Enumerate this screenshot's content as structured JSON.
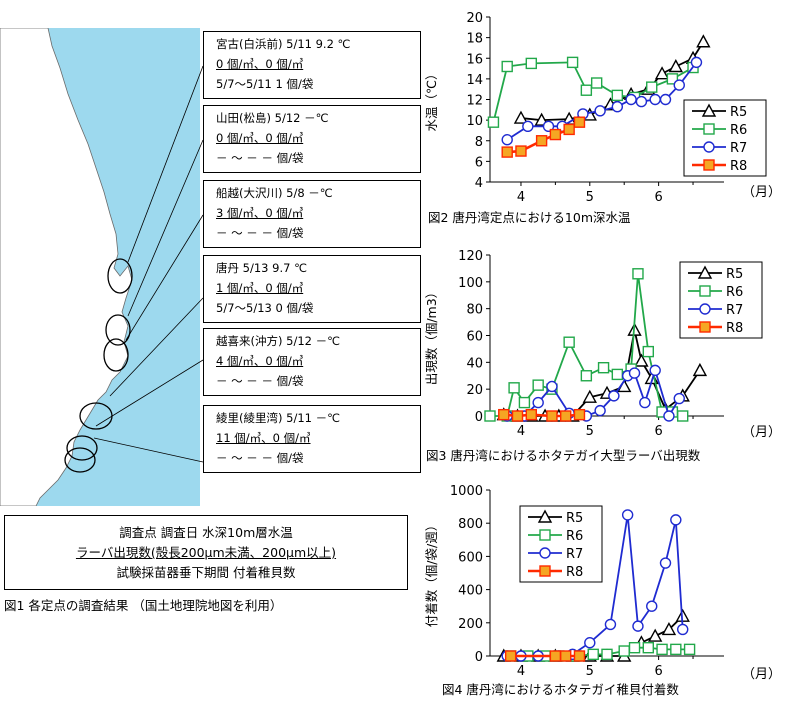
{
  "stations": [
    {
      "line1": "宮古(白浜前) 5/11  9.2 ℃",
      "line2": "  0 個/㎥、0 個/㎥",
      "line3": "5/7～5/11   1 個/袋"
    },
    {
      "line1": "山田(松島) 5/12  －℃",
      "line2": "  0 個/㎥、0 個/㎥",
      "line3": "－ ～ －      － 個/袋"
    },
    {
      "line1": "船越(大沢川) 5/8  －℃",
      "line2": "  3 個/㎥、0 個/㎥",
      "line3": "－ ～ －      － 個/袋"
    },
    {
      "line1": "唐丹 5/13  9.7 ℃",
      "line2": "  1 個/㎥、0 個/㎥",
      "line3": "5/7～5/13   0 個/袋"
    },
    {
      "line1": "越喜来(沖方) 5/12  －℃",
      "line2": "  4 個/㎥、0 個/㎥",
      "line3": "－ ～ －      － 個/袋"
    },
    {
      "line1": "綾里(綾里湾) 5/11  －℃",
      "line2": "  11 個/㎥、0 個/㎥",
      "line3": "－ ～ －      － 個/袋"
    }
  ],
  "legend_box": {
    "line1": "調査点  調査日  水深10m層水温",
    "line2": "ラーバ出現数(殻長200μm未満、200μm以上)",
    "line3": "試験採苗器垂下期間  付着稚貝数"
  },
  "fig1_caption": "図1  各定点の調査結果 （国土地理院地図を利用）",
  "colors": {
    "sea": "#9dd9ee",
    "land": "#ffffff",
    "R5": "#000000",
    "R6": "#22a84a",
    "R7": "#1f2bd1",
    "R8": "#ff2a00",
    "R8_fill": "#f5a623"
  },
  "chart_data": [
    {
      "type": "line",
      "title": "図2  唐丹湾定点における10m深水温",
      "xlabel": "（月）",
      "ylabel": "水温（℃）",
      "xlim": [
        3.55,
        6.95
      ],
      "ylim": [
        4,
        20
      ],
      "xticks": [
        4,
        5,
        6
      ],
      "yticks": [
        4,
        6,
        8,
        10,
        12,
        14,
        16,
        18,
        20
      ],
      "legend": "right",
      "series": [
        {
          "name": "R5",
          "x": [
            4.0,
            4.3,
            4.7,
            5.0,
            5.3,
            5.6,
            5.85,
            6.05,
            6.25,
            6.5,
            6.65
          ],
          "y": [
            10.2,
            10.0,
            10.1,
            10.5,
            11.5,
            12.5,
            13.0,
            14.5,
            15.2,
            16.0,
            17.6
          ]
        },
        {
          "name": "R6",
          "x": [
            3.6,
            3.8,
            4.15,
            4.75,
            4.95,
            5.1,
            5.4,
            5.65,
            5.9,
            6.2,
            6.5
          ],
          "y": [
            9.8,
            15.2,
            15.5,
            15.6,
            12.9,
            13.6,
            12.4,
            12.2,
            13.2,
            14.0,
            15.1
          ]
        },
        {
          "name": "R7",
          "x": [
            3.8,
            4.1,
            4.4,
            4.6,
            4.9,
            5.15,
            5.4,
            5.6,
            5.75,
            5.95,
            6.1,
            6.3,
            6.55
          ],
          "y": [
            8.1,
            9.4,
            9.4,
            9.4,
            10.6,
            10.9,
            11.3,
            12.0,
            11.8,
            12.0,
            12.0,
            13.4,
            15.6
          ]
        },
        {
          "name": "R8",
          "x": [
            3.8,
            4.0,
            4.3,
            4.5,
            4.7,
            4.85
          ],
          "y": [
            6.9,
            7.0,
            8.0,
            8.6,
            9.1,
            9.8
          ]
        }
      ]
    },
    {
      "type": "line",
      "title": "図3  唐丹湾におけるホタテガイ大型ラーバ出現数",
      "xlabel": "（月）",
      "ylabel": "出現数（個/m3）",
      "xlim": [
        3.55,
        6.95
      ],
      "ylim": [
        0,
        120
      ],
      "xticks": [
        4,
        5,
        6
      ],
      "yticks": [
        0,
        20,
        40,
        60,
        80,
        100,
        120
      ],
      "legend": "top-right",
      "series": [
        {
          "name": "R5",
          "x": [
            3.75,
            3.95,
            4.15,
            4.35,
            4.55,
            4.75,
            5.0,
            5.25,
            5.5,
            5.65,
            5.75,
            5.9,
            6.1,
            6.35,
            6.6
          ],
          "y": [
            1,
            0,
            0,
            0,
            0,
            0,
            14,
            17,
            22,
            64,
            41,
            28,
            5,
            15,
            34
          ]
        },
        {
          "name": "R6",
          "x": [
            3.55,
            3.8,
            3.9,
            4.05,
            4.25,
            4.45,
            4.7,
            4.95,
            5.2,
            5.4,
            5.6,
            5.7,
            5.85,
            6.05,
            6.2,
            6.35
          ],
          "y": [
            0,
            0,
            21,
            10,
            23,
            20,
            55,
            30,
            36,
            31,
            35,
            106,
            48,
            3,
            3,
            0
          ]
        },
        {
          "name": "R7",
          "x": [
            3.8,
            4.05,
            4.25,
            4.45,
            4.7,
            4.95,
            5.15,
            5.35,
            5.55,
            5.65,
            5.8,
            5.95,
            6.15,
            6.3
          ],
          "y": [
            0,
            0,
            10,
            22,
            2,
            0,
            4,
            15,
            30,
            32,
            10,
            34,
            0,
            13
          ]
        },
        {
          "name": "R8",
          "x": [
            3.75,
            3.95,
            4.15,
            4.45,
            4.65,
            4.85
          ],
          "y": [
            1,
            0,
            1,
            0,
            0,
            1
          ]
        }
      ]
    },
    {
      "type": "line",
      "title": "図4  唐丹湾におけるホタテガイ稚貝付着数",
      "xlabel": "（月）",
      "ylabel": "付着数（個/袋/週）",
      "xlim": [
        3.55,
        6.95
      ],
      "ylim": [
        0,
        1000
      ],
      "xticks": [
        4,
        5,
        6
      ],
      "yticks": [
        0,
        200,
        400,
        600,
        800,
        1000
      ],
      "legend": "top-left",
      "series": [
        {
          "name": "R5",
          "x": [
            3.75,
            4.0,
            4.25,
            4.5,
            4.75,
            5.0,
            5.25,
            5.5,
            5.75,
            5.95,
            6.15,
            6.35
          ],
          "y": [
            0,
            0,
            0,
            0,
            0,
            0,
            0,
            0,
            80,
            120,
            160,
            240
          ]
        },
        {
          "name": "R6",
          "x": [
            3.85,
            4.1,
            4.35,
            4.55,
            4.8,
            5.05,
            5.25,
            5.5,
            5.65,
            5.85,
            6.05,
            6.25,
            6.45
          ],
          "y": [
            0,
            0,
            0,
            0,
            0,
            10,
            10,
            30,
            50,
            50,
            40,
            40,
            40
          ]
        },
        {
          "name": "R7",
          "x": [
            3.8,
            4.0,
            4.25,
            4.55,
            4.75,
            5.0,
            5.3,
            5.55,
            5.7,
            5.9,
            6.1,
            6.25,
            6.35
          ],
          "y": [
            0,
            0,
            0,
            0,
            10,
            80,
            190,
            850,
            180,
            300,
            560,
            820,
            160
          ]
        },
        {
          "name": "R8",
          "x": [
            3.85,
            4.5,
            4.65,
            4.85
          ],
          "y": [
            0,
            0,
            0,
            0
          ]
        }
      ]
    }
  ]
}
